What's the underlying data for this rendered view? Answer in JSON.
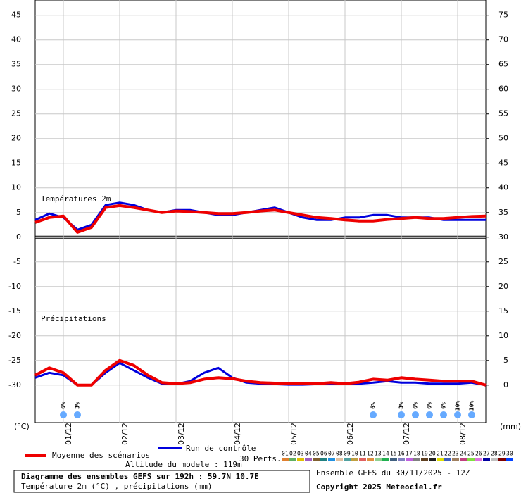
{
  "chart_data": {
    "type": "line",
    "x": [
      0,
      6,
      12,
      18,
      24,
      30,
      36,
      42,
      48,
      54,
      60,
      66,
      72,
      78,
      84,
      90,
      96,
      102,
      108,
      114,
      120,
      126,
      132,
      138,
      144,
      150,
      156,
      162,
      168,
      174,
      180,
      186,
      192
    ],
    "xlim": [
      0,
      192
    ],
    "xticks": [
      {
        "value": 12,
        "label": "01/12"
      },
      {
        "value": 36,
        "label": "02/12"
      },
      {
        "value": 60,
        "label": "03/12"
      },
      {
        "value": 84,
        "label": "04/12"
      },
      {
        "value": 108,
        "label": "05/12"
      },
      {
        "value": 132,
        "label": "06/12"
      },
      {
        "value": 156,
        "label": "07/12"
      },
      {
        "value": 180,
        "label": "08/12"
      }
    ],
    "ylim": [
      -37.6,
      48.1
    ],
    "yticks": [
      -30,
      -25,
      -20,
      -15,
      -10,
      -5,
      0,
      5,
      10,
      15,
      20,
      25,
      30,
      35,
      40,
      45
    ],
    "y2lim": [
      -7.6,
      78.1
    ],
    "y2ticks": [
      0,
      5,
      10,
      15,
      20,
      25,
      30,
      35,
      40,
      45,
      50,
      55,
      60,
      65,
      70,
      75
    ],
    "grid": true,
    "series": [
      {
        "name": "Moyenne des scénarios",
        "color": "#ee0000",
        "values": [
          3,
          4,
          4.3,
          1,
          2,
          6,
          6.4,
          6,
          5.5,
          5,
          5.3,
          5.2,
          5,
          4.8,
          4.8,
          5,
          5.3,
          5.5,
          5,
          4.5,
          4,
          3.8,
          3.5,
          3.3,
          3.3,
          3.6,
          3.8,
          4,
          3.8,
          3.8,
          4,
          4.2,
          4.3
        ]
      },
      {
        "name": "Run de contrôle",
        "color": "#0000dd",
        "values": [
          3.5,
          4.8,
          4,
          1.5,
          2.5,
          6.5,
          7,
          6.5,
          5.5,
          5,
          5.5,
          5.5,
          5,
          4.5,
          4.5,
          5,
          5.5,
          6,
          5,
          4,
          3.5,
          3.5,
          4,
          4,
          4.5,
          4.5,
          4,
          4,
          4,
          3.5,
          3.5,
          3.5,
          3.5
        ]
      },
      {
        "color": "#ee0000",
        "axis": "y2",
        "values": [
          2,
          3.5,
          2.5,
          0,
          0,
          3,
          5,
          4,
          2,
          0.5,
          0.3,
          0.5,
          1.2,
          1.5,
          1.3,
          0.8,
          0.5,
          0.4,
          0.3,
          0.3,
          0.3,
          0.5,
          0.3,
          0.6,
          1.2,
          1,
          1.5,
          1.2,
          1,
          0.8,
          0.8,
          0.8,
          0
        ]
      },
      {
        "color": "#0000dd",
        "axis": "y2",
        "values": [
          1.5,
          2.5,
          2,
          0,
          0,
          2.5,
          4.5,
          3,
          1.5,
          0.3,
          0.2,
          0.8,
          2.5,
          3.5,
          1.5,
          0.5,
          0.3,
          0.2,
          0.1,
          0.1,
          0.2,
          0.3,
          0.2,
          0.3,
          0.5,
          0.8,
          0.5,
          0.5,
          0.3,
          0.3,
          0.3,
          0.5,
          0
        ]
      }
    ],
    "annotations": [
      "Températures 2m",
      "Précipitations"
    ],
    "y_unit": "(°C)",
    "y2_unit": "(mm)",
    "snow": {
      "x": [
        12,
        18,
        144,
        156,
        162,
        168,
        174,
        180,
        186
      ],
      "values": [
        6,
        3,
        6,
        3,
        6,
        6,
        6,
        10,
        10
      ],
      "value_labels": [
        "6%",
        "3%",
        "6%",
        "3%",
        "6%",
        "6%",
        "6%",
        "10%",
        "10%"
      ],
      "color": "#66aaff"
    },
    "altitude": "Altitude du modele : 119m",
    "perts": {
      "label": "30 Perts.",
      "members": [
        {
          "name": "01",
          "color": "#e08030"
        },
        {
          "name": "02",
          "color": "#60b060"
        },
        {
          "name": "03",
          "color": "#e0c000"
        },
        {
          "name": "04",
          "color": "#a060c0"
        },
        {
          "name": "05",
          "color": "#806030"
        },
        {
          "name": "06",
          "color": "#208080"
        },
        {
          "name": "07",
          "color": "#2090e0"
        },
        {
          "name": "08",
          "color": "#e0c0a0"
        },
        {
          "name": "09",
          "color": "#50a0a0"
        },
        {
          "name": "10",
          "color": "#c0a040"
        },
        {
          "name": "11",
          "color": "#e06060"
        },
        {
          "name": "12",
          "color": "#e09040"
        },
        {
          "name": "13",
          "color": "#90d090"
        },
        {
          "name": "14",
          "color": "#20b050"
        },
        {
          "name": "15",
          "color": "#406080"
        },
        {
          "name": "16",
          "color": "#8080c0"
        },
        {
          "name": "17",
          "color": "#c060e0"
        },
        {
          "name": "18",
          "color": "#808080"
        },
        {
          "name": "19",
          "color": "#604020"
        },
        {
          "name": "20",
          "color": "#202020"
        },
        {
          "name": "21",
          "color": "#e0e000"
        },
        {
          "name": "22",
          "color": "#4060c0"
        },
        {
          "name": "23",
          "color": "#a08060"
        },
        {
          "name": "24",
          "color": "#c04080"
        },
        {
          "name": "25",
          "color": "#80e040"
        },
        {
          "name": "26",
          "color": "#e070e0"
        },
        {
          "name": "27",
          "color": "#0000a0"
        },
        {
          "name": "28",
          "color": "#c0c0c0"
        },
        {
          "name": "29",
          "color": "#800000"
        },
        {
          "name": "30",
          "color": "#0040ff"
        }
      ]
    },
    "footer": {
      "title": "Diagramme des ensembles GEFS sur 192h : 59.7N 10.7E",
      "subtitle": "Température 2m (°C) , précipitations (mm)",
      "run": "Ensemble GEFS du 30/11/2025 - 12Z",
      "copyright": "Copyright 2025 Meteociel.fr"
    }
  }
}
